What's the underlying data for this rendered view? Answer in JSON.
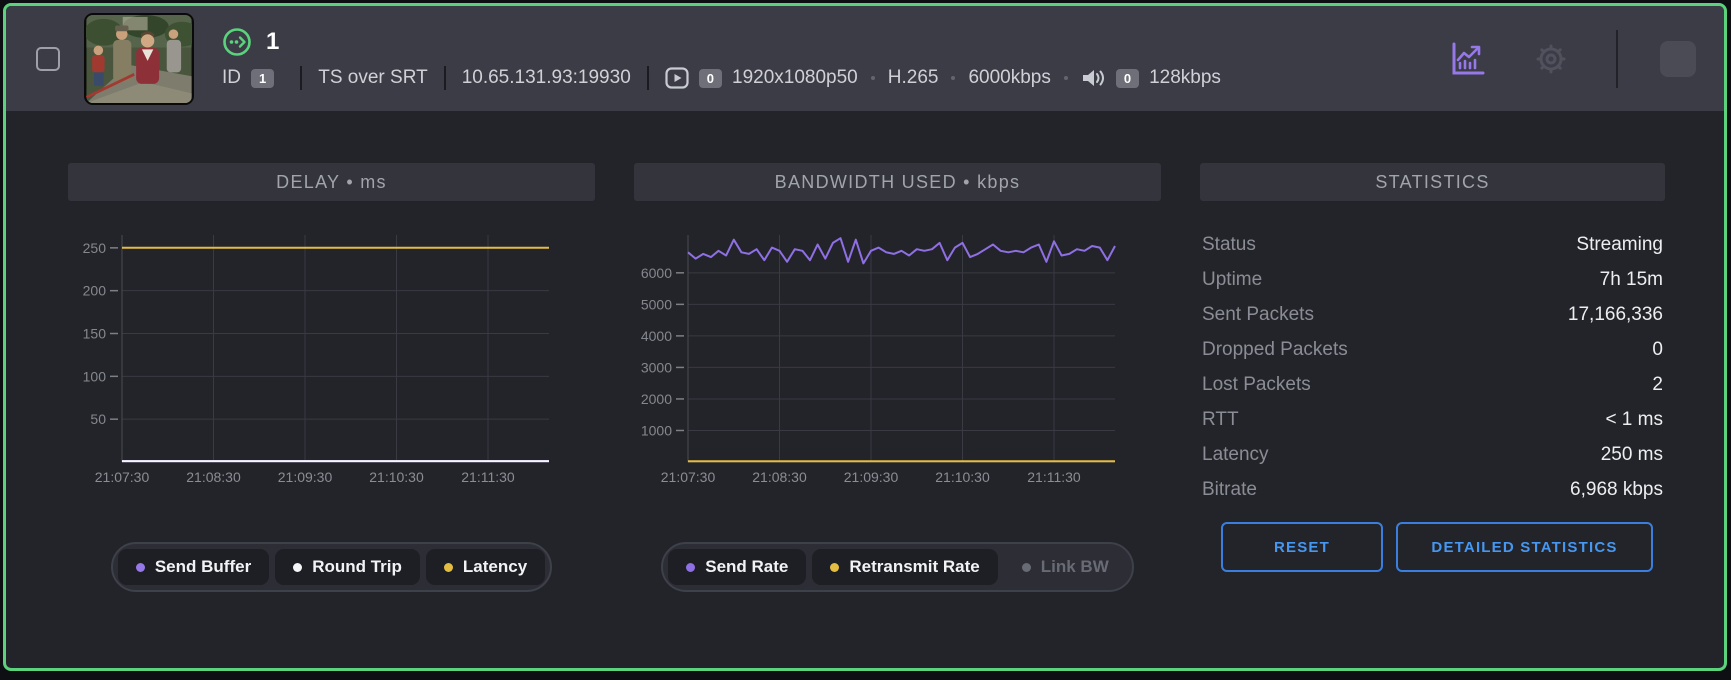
{
  "header": {
    "title": "1",
    "id_label": "ID",
    "id_badge": "1",
    "protocol": "TS over SRT",
    "address": "10.65.131.93:19930",
    "video_badge": "0",
    "video_format": "1920x1080p50",
    "video_codec": "H.265",
    "video_bitrate": "6000kbps",
    "audio_badge": "0",
    "audio_bitrate": "128kbps",
    "icons": [
      "streaming-status-icon",
      "video-track-icon",
      "audio-track-icon",
      "statistics-chart-icon",
      "settings-gear-icon",
      "stop-icon"
    ]
  },
  "colors": {
    "card_border": "#5bd37c",
    "header_bg": "#3b3c46",
    "body_bg": "#232429",
    "accent_purple": "#8f6fe4",
    "accent_yellow": "#e3bc42",
    "accent_blue": "#4697f2",
    "status_green": "#5bd37c"
  },
  "statistics": {
    "title": "STATISTICS",
    "rows": [
      {
        "label": "Status",
        "value": "Streaming"
      },
      {
        "label": "Uptime",
        "value": "7h 15m"
      },
      {
        "label": "Sent Packets",
        "value": "17,166,336"
      },
      {
        "label": "Dropped Packets",
        "value": "0"
      },
      {
        "label": "Lost Packets",
        "value": "2"
      },
      {
        "label": "RTT",
        "value": "< 1 ms"
      },
      {
        "label": "Latency",
        "value": "250 ms"
      },
      {
        "label": "Bitrate",
        "value": "6,968 kbps"
      }
    ],
    "buttons": {
      "reset": "RESET",
      "detailed": "DETAILED STATISTICS"
    }
  },
  "chart_data": [
    {
      "id": "delay",
      "type": "line",
      "title": "DELAY • ms",
      "xlabel": "",
      "ylabel": "ms",
      "x_tick_labels": [
        "21:07:30",
        "21:08:30",
        "21:09:30",
        "21:10:30",
        "21:11:30"
      ],
      "x_tick_seconds": [
        0,
        60,
        120,
        180,
        240
      ],
      "x_total_seconds": 280,
      "yticks": [
        50,
        100,
        150,
        200,
        250
      ],
      "ylim": [
        0,
        265
      ],
      "grid": true,
      "legend_position": "bottom",
      "series": [
        {
          "name": "Send Buffer",
          "color": "#9678e8",
          "constant": 1,
          "points": 57,
          "enabled": true
        },
        {
          "name": "Round Trip",
          "color": "#f5f6f8",
          "constant": 1,
          "points": 57,
          "enabled": true
        },
        {
          "name": "Latency",
          "color": "#e3bc42",
          "constant": 250,
          "points": 57,
          "enabled": true
        }
      ]
    },
    {
      "id": "bandwidth",
      "type": "line",
      "title": "BANDWIDTH USED • kbps",
      "xlabel": "",
      "ylabel": "kbps",
      "x_tick_labels": [
        "21:07:30",
        "21:08:30",
        "21:09:30",
        "21:10:30",
        "21:11:30"
      ],
      "x_tick_seconds": [
        0,
        60,
        120,
        180,
        240
      ],
      "x_total_seconds": 280,
      "yticks": [
        1000,
        2000,
        3000,
        4000,
        5000,
        6000
      ],
      "ylim": [
        0,
        7200
      ],
      "grid": true,
      "legend_position": "bottom",
      "series": [
        {
          "name": "Send Rate",
          "color": "#8f6fe4",
          "enabled": true,
          "values": [
            6650,
            6450,
            6600,
            6500,
            6700,
            6550,
            7050,
            6650,
            6600,
            6750,
            6400,
            6800,
            6700,
            6350,
            6750,
            6700,
            6400,
            6900,
            6450,
            6950,
            7100,
            6350,
            7050,
            6300,
            6700,
            6800,
            6650,
            6600,
            6700,
            6550,
            6750,
            6700,
            6750,
            6950,
            6400,
            6800,
            6950,
            6500,
            6600,
            6750,
            6900,
            6700,
            6650,
            6700,
            6650,
            6800,
            6900,
            6350,
            7000,
            6550,
            6600,
            6750,
            6700,
            6850,
            6800,
            6400,
            6850
          ]
        },
        {
          "name": "Retransmit Rate",
          "color": "#e3bc42",
          "constant": 25,
          "points": 57,
          "enabled": true
        },
        {
          "name": "Link BW",
          "color": "#696b74",
          "enabled": false
        }
      ]
    }
  ]
}
